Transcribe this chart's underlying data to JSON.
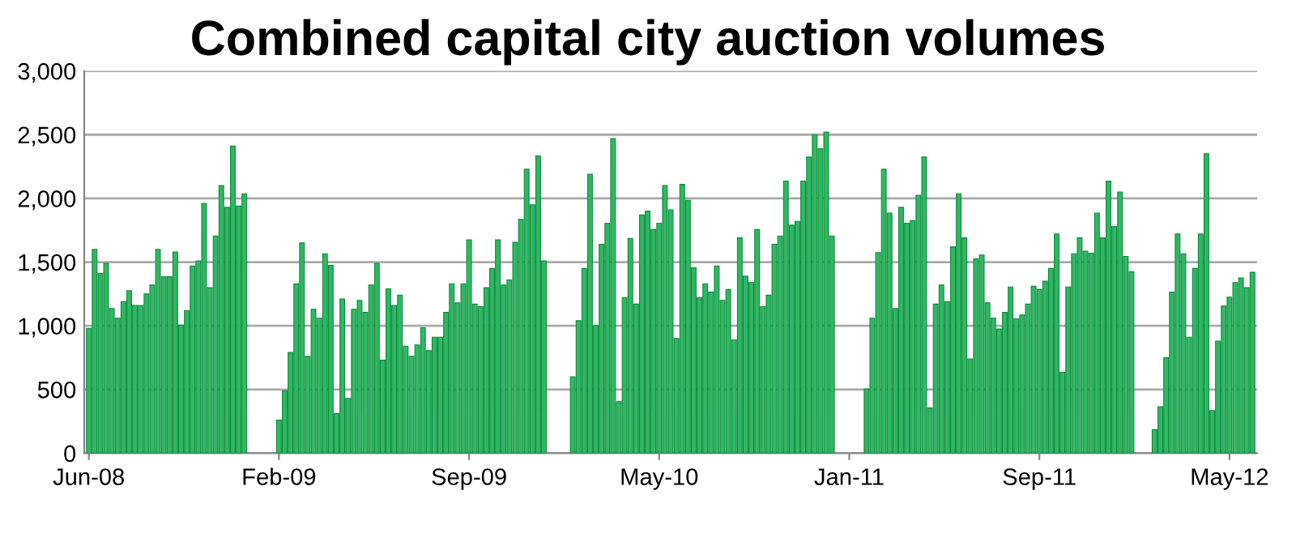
{
  "chart_data": {
    "type": "bar",
    "title": "Combined capital city auction volumes",
    "categories": [
      "Jun-08",
      null,
      null,
      null,
      null,
      null,
      null,
      null,
      null,
      null,
      null,
      null,
      null,
      null,
      null,
      null,
      null,
      null,
      null,
      null,
      null,
      null,
      null,
      null,
      null,
      null,
      null,
      null,
      null,
      null,
      null,
      null,
      null,
      "Feb-09",
      null,
      null,
      null,
      null,
      null,
      null,
      null,
      null,
      null,
      null,
      null,
      null,
      null,
      null,
      null,
      null,
      null,
      null,
      null,
      null,
      null,
      null,
      null,
      null,
      null,
      null,
      null,
      null,
      null,
      null,
      null,
      null,
      "Sep-09",
      null,
      null,
      null,
      null,
      null,
      null,
      null,
      null,
      null,
      null,
      null,
      null,
      null,
      null,
      null,
      null,
      null,
      null,
      null,
      null,
      null,
      null,
      null,
      null,
      null,
      null,
      null,
      null,
      null,
      null,
      null,
      null,
      "May-10",
      null,
      null,
      null,
      null,
      null,
      null,
      null,
      null,
      null,
      null,
      null,
      null,
      null,
      null,
      null,
      null,
      null,
      null,
      null,
      null,
      null,
      null,
      null,
      null,
      null,
      null,
      null,
      null,
      null,
      null,
      null,
      null,
      "Jan-11",
      null,
      null,
      null,
      null,
      null,
      null,
      null,
      null,
      null,
      null,
      null,
      null,
      null,
      null,
      null,
      null,
      null,
      null,
      null,
      null,
      null,
      null,
      null,
      null,
      null,
      null,
      null,
      null,
      null,
      null,
      null,
      null,
      "Sep-11",
      null,
      null,
      null,
      null,
      null,
      null,
      null,
      null,
      null,
      null,
      null,
      null,
      null,
      null,
      null,
      null,
      null,
      null,
      null,
      null,
      null,
      null,
      null,
      null,
      null,
      null,
      null,
      null,
      null,
      null,
      null,
      null,
      "May-12",
      null,
      null,
      null,
      null
    ],
    "values": [
      980,
      1600,
      1410,
      1490,
      1135,
      1060,
      1190,
      1275,
      1160,
      1160,
      1250,
      1320,
      1600,
      1385,
      1385,
      1580,
      1005,
      1120,
      1470,
      1510,
      1960,
      1300,
      1705,
      2100,
      1930,
      2410,
      1940,
      2035,
      null,
      null,
      null,
      null,
      null,
      260,
      490,
      790,
      1330,
      1650,
      760,
      1130,
      1060,
      1565,
      1475,
      310,
      1210,
      430,
      1130,
      1200,
      1105,
      1320,
      1490,
      730,
      1290,
      1160,
      1240,
      840,
      760,
      850,
      985,
      805,
      910,
      910,
      1105,
      1330,
      1180,
      1330,
      1675,
      1170,
      1150,
      1300,
      1450,
      1675,
      1320,
      1360,
      1655,
      1835,
      2230,
      1950,
      2335,
      1510,
      null,
      null,
      null,
      null,
      600,
      1040,
      1450,
      2190,
      1000,
      1640,
      1805,
      2470,
      405,
      1220,
      1685,
      1170,
      1870,
      1900,
      1755,
      1805,
      2100,
      1910,
      900,
      2110,
      1985,
      1455,
      1220,
      1330,
      1265,
      1470,
      1200,
      1285,
      890,
      1690,
      1390,
      1340,
      1755,
      1150,
      1240,
      1640,
      1705,
      2135,
      1790,
      1820,
      2135,
      2325,
      2500,
      2390,
      2520,
      1705,
      null,
      null,
      null,
      null,
      null,
      505,
      1060,
      1575,
      2230,
      1885,
      1135,
      1930,
      1805,
      1825,
      2025,
      2325,
      355,
      1170,
      1320,
      1190,
      1620,
      2035,
      1690,
      740,
      1525,
      1555,
      1180,
      1060,
      975,
      1105,
      1305,
      1055,
      1085,
      1170,
      1310,
      1285,
      1350,
      1450,
      1720,
      635,
      1305,
      1565,
      1690,
      1585,
      1570,
      1885,
      1690,
      2135,
      1780,
      2050,
      1545,
      1425,
      null,
      null,
      null,
      185,
      365,
      750,
      1265,
      1720,
      1565,
      910,
      1450,
      1720,
      2350,
      335,
      880,
      1155,
      1225,
      1340,
      1375,
      1300,
      1420
    ],
    "color": "#2eb862",
    "ylim": [
      0,
      3000
    ],
    "yticks": [
      {
        "value": 0,
        "label": "0"
      },
      {
        "value": 500,
        "label": "500"
      },
      {
        "value": 1000,
        "label": "1,000"
      },
      {
        "value": 1500,
        "label": "1,500"
      },
      {
        "value": 2000,
        "label": "2,000"
      },
      {
        "value": 2500,
        "label": "2,500"
      },
      {
        "value": 3000,
        "label": "3,000"
      }
    ],
    "grid": "y"
  }
}
